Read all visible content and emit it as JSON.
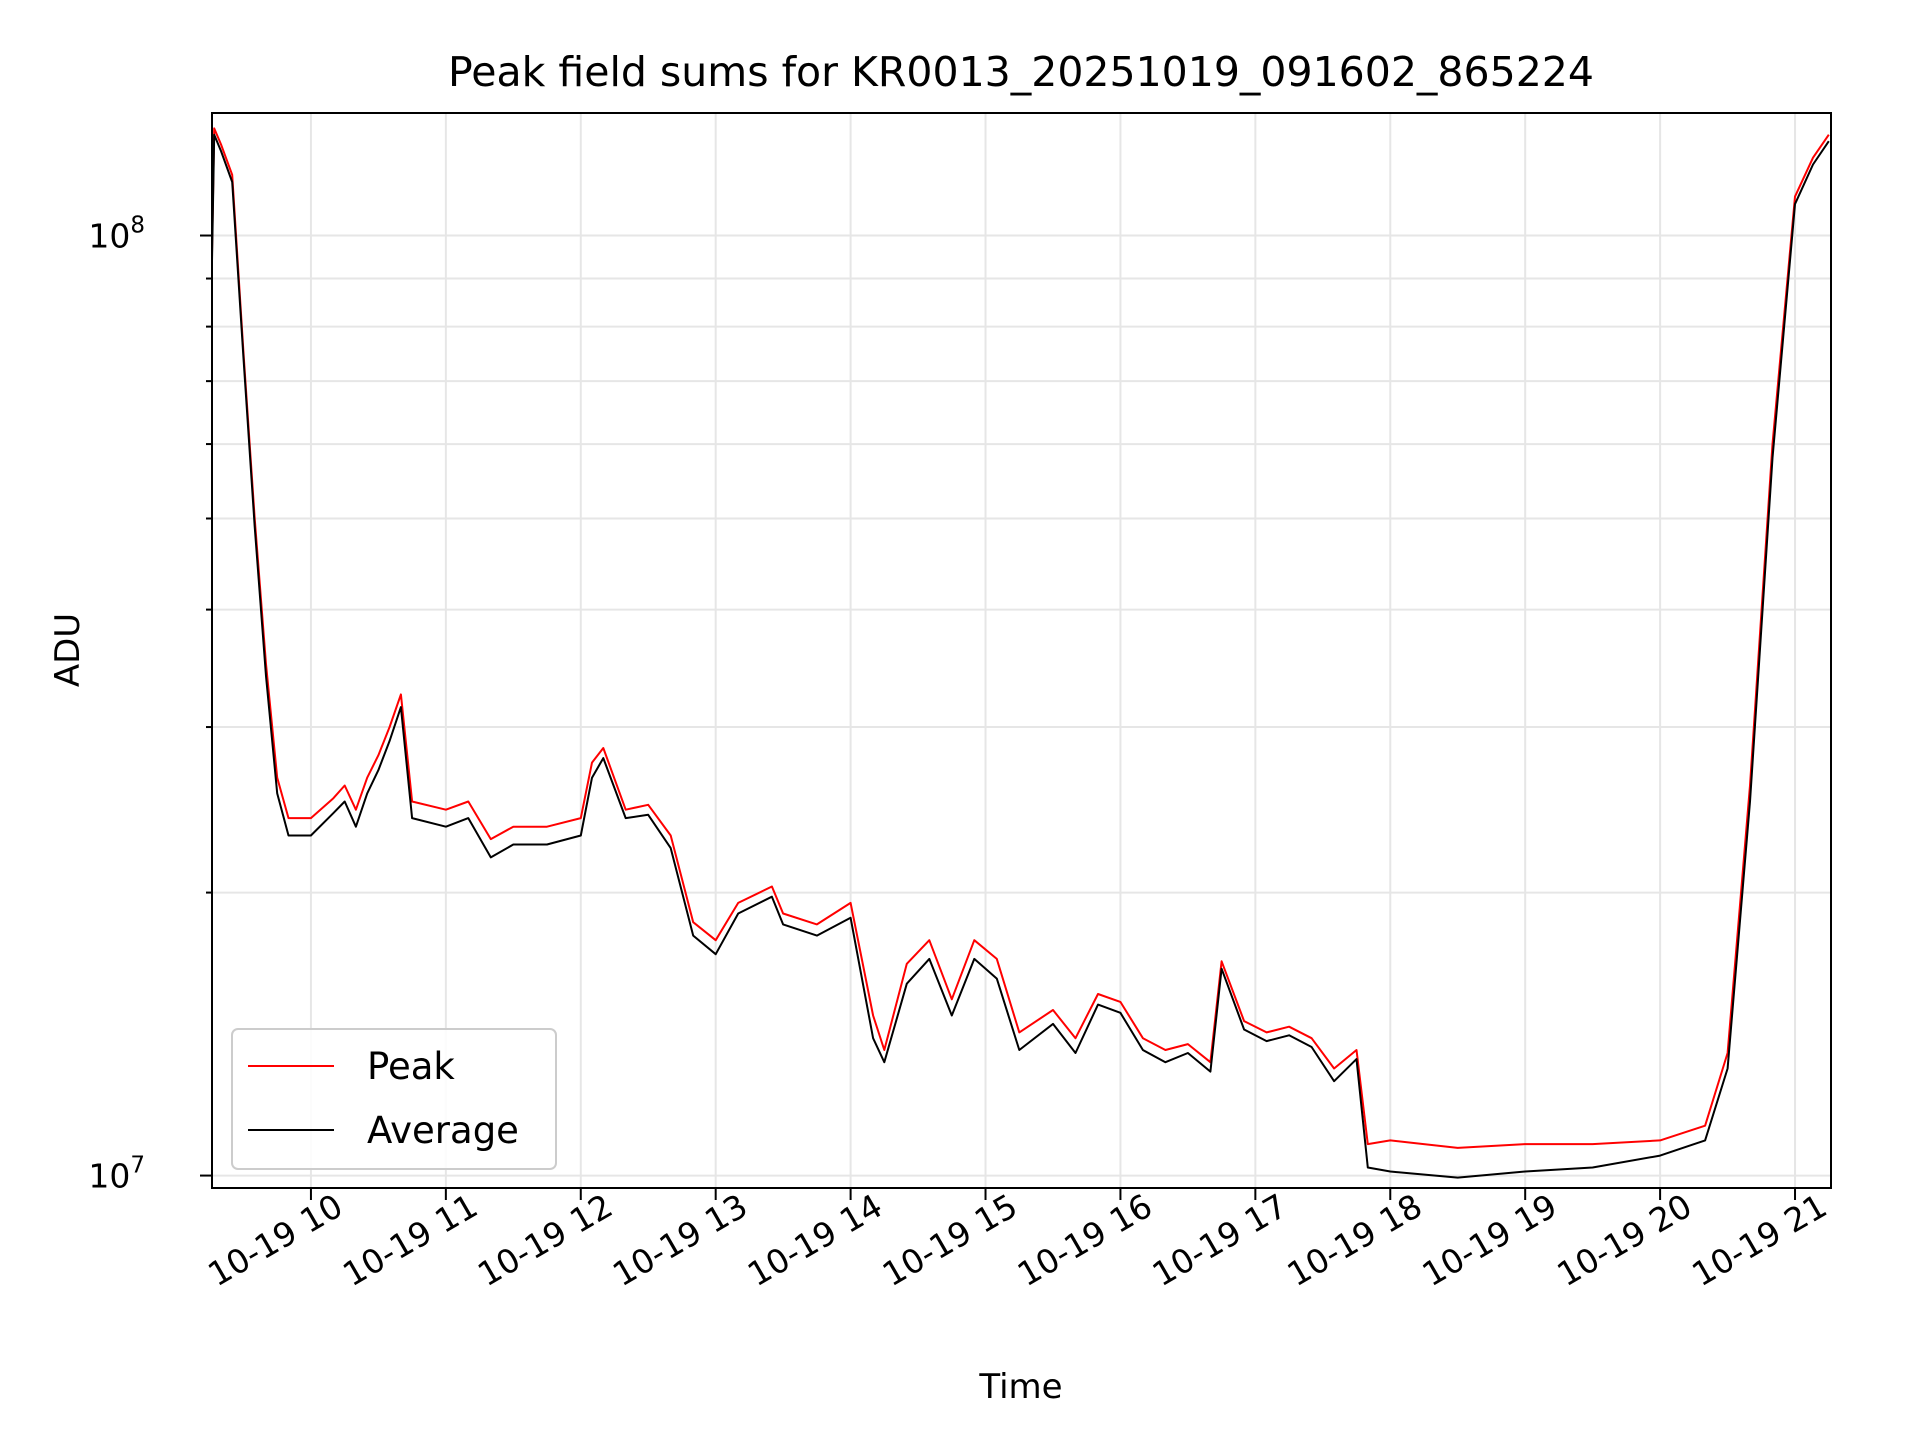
{
  "chart_data": {
    "type": "line",
    "title": "Peak field sums for KR0013_20251019_091602_865224",
    "xlabel": "Time",
    "ylabel": "ADU",
    "y_scale": "log",
    "grid": true,
    "legend_position": "lower-left",
    "xlim": [
      "2025-10-19 09:16",
      "2025-10-19 21:16"
    ],
    "ylim": [
      9700000,
      135000000
    ],
    "x_ticks": [
      {
        "label": "10-19 10",
        "value": "2025-10-19 10:00"
      },
      {
        "label": "10-19 11",
        "value": "2025-10-19 11:00"
      },
      {
        "label": "10-19 12",
        "value": "2025-10-19 12:00"
      },
      {
        "label": "10-19 13",
        "value": "2025-10-19 13:00"
      },
      {
        "label": "10-19 14",
        "value": "2025-10-19 14:00"
      },
      {
        "label": "10-19 15",
        "value": "2025-10-19 15:00"
      },
      {
        "label": "10-19 16",
        "value": "2025-10-19 16:00"
      },
      {
        "label": "10-19 17",
        "value": "2025-10-19 17:00"
      },
      {
        "label": "10-19 18",
        "value": "2025-10-19 18:00"
      },
      {
        "label": "10-19 19",
        "value": "2025-10-19 19:00"
      },
      {
        "label": "10-19 20",
        "value": "2025-10-19 20:00"
      },
      {
        "label": "10-19 21",
        "value": "2025-10-19 21:00"
      }
    ],
    "y_ticks": [
      {
        "base": "10",
        "exp": "7",
        "value": 10000000
      },
      {
        "base": "10",
        "exp": "8",
        "value": 100000000
      }
    ],
    "series": [
      {
        "name": "Peak",
        "color": "#ff0000",
        "points": [
          [
            "2025-10-19 09:16",
            96000000
          ],
          [
            "2025-10-19 09:17",
            130000000
          ],
          [
            "2025-10-19 09:20",
            125000000
          ],
          [
            "2025-10-19 09:25",
            116000000
          ],
          [
            "2025-10-19 09:30",
            75000000
          ],
          [
            "2025-10-19 09:35",
            50000000
          ],
          [
            "2025-10-19 09:40",
            35000000
          ],
          [
            "2025-10-19 09:45",
            26500000
          ],
          [
            "2025-10-19 09:50",
            24000000
          ],
          [
            "2025-10-19 10:00",
            24000000
          ],
          [
            "2025-10-19 10:10",
            25200000
          ],
          [
            "2025-10-19 10:15",
            26000000
          ],
          [
            "2025-10-19 10:20",
            24500000
          ],
          [
            "2025-10-19 10:25",
            26500000
          ],
          [
            "2025-10-19 10:30",
            28000000
          ],
          [
            "2025-10-19 10:35",
            30000000
          ],
          [
            "2025-10-19 10:40",
            32500000
          ],
          [
            "2025-10-19 10:45",
            25000000
          ],
          [
            "2025-10-19 11:00",
            24500000
          ],
          [
            "2025-10-19 11:10",
            25000000
          ],
          [
            "2025-10-19 11:20",
            22800000
          ],
          [
            "2025-10-19 11:30",
            23500000
          ],
          [
            "2025-10-19 11:45",
            23500000
          ],
          [
            "2025-10-19 12:00",
            24000000
          ],
          [
            "2025-10-19 12:05",
            27500000
          ],
          [
            "2025-10-19 12:10",
            28500000
          ],
          [
            "2025-10-19 12:20",
            24500000
          ],
          [
            "2025-10-19 12:30",
            24800000
          ],
          [
            "2025-10-19 12:40",
            23000000
          ],
          [
            "2025-10-19 12:50",
            18600000
          ],
          [
            "2025-10-19 13:00",
            17800000
          ],
          [
            "2025-10-19 13:10",
            19500000
          ],
          [
            "2025-10-19 13:25",
            20300000
          ],
          [
            "2025-10-19 13:30",
            19000000
          ],
          [
            "2025-10-19 13:45",
            18500000
          ],
          [
            "2025-10-19 14:00",
            19500000
          ],
          [
            "2025-10-19 14:10",
            14800000
          ],
          [
            "2025-10-19 14:15",
            13600000
          ],
          [
            "2025-10-19 14:25",
            16800000
          ],
          [
            "2025-10-19 14:35",
            17800000
          ],
          [
            "2025-10-19 14:45",
            15400000
          ],
          [
            "2025-10-19 14:55",
            17800000
          ],
          [
            "2025-10-19 15:05",
            17000000
          ],
          [
            "2025-10-19 15:15",
            14200000
          ],
          [
            "2025-10-19 15:30",
            15000000
          ],
          [
            "2025-10-19 15:40",
            14000000
          ],
          [
            "2025-10-19 15:50",
            15600000
          ],
          [
            "2025-10-19 16:00",
            15300000
          ],
          [
            "2025-10-19 16:10",
            14000000
          ],
          [
            "2025-10-19 16:20",
            13600000
          ],
          [
            "2025-10-19 16:30",
            13800000
          ],
          [
            "2025-10-19 16:40",
            13200000
          ],
          [
            "2025-10-19 16:45",
            16900000
          ],
          [
            "2025-10-19 16:55",
            14600000
          ],
          [
            "2025-10-19 17:05",
            14200000
          ],
          [
            "2025-10-19 17:15",
            14400000
          ],
          [
            "2025-10-19 17:25",
            14000000
          ],
          [
            "2025-10-19 17:35",
            13000000
          ],
          [
            "2025-10-19 17:45",
            13600000
          ],
          [
            "2025-10-19 17:50",
            10800000
          ],
          [
            "2025-10-19 18:00",
            10900000
          ],
          [
            "2025-10-19 18:30",
            10700000
          ],
          [
            "2025-10-19 19:00",
            10800000
          ],
          [
            "2025-10-19 19:30",
            10800000
          ],
          [
            "2025-10-19 20:00",
            10900000
          ],
          [
            "2025-10-19 20:20",
            11300000
          ],
          [
            "2025-10-19 20:30",
            13500000
          ],
          [
            "2025-10-19 20:40",
            26000000
          ],
          [
            "2025-10-19 20:50",
            60000000
          ],
          [
            "2025-10-19 21:00",
            110000000
          ],
          [
            "2025-10-19 21:08",
            121000000
          ],
          [
            "2025-10-19 21:15",
            128000000
          ]
        ]
      },
      {
        "name": "Average",
        "color": "#000000",
        "points": [
          [
            "2025-10-19 09:16",
            94000000
          ],
          [
            "2025-10-19 09:17",
            128000000
          ],
          [
            "2025-10-19 09:20",
            123000000
          ],
          [
            "2025-10-19 09:25",
            114000000
          ],
          [
            "2025-10-19 09:30",
            74000000
          ],
          [
            "2025-10-19 09:35",
            49000000
          ],
          [
            "2025-10-19 09:40",
            34000000
          ],
          [
            "2025-10-19 09:45",
            25500000
          ],
          [
            "2025-10-19 09:50",
            23000000
          ],
          [
            "2025-10-19 10:00",
            23000000
          ],
          [
            "2025-10-19 10:10",
            24300000
          ],
          [
            "2025-10-19 10:15",
            25000000
          ],
          [
            "2025-10-19 10:20",
            23500000
          ],
          [
            "2025-10-19 10:25",
            25500000
          ],
          [
            "2025-10-19 10:30",
            27000000
          ],
          [
            "2025-10-19 10:35",
            29000000
          ],
          [
            "2025-10-19 10:40",
            31500000
          ],
          [
            "2025-10-19 10:45",
            24000000
          ],
          [
            "2025-10-19 11:00",
            23500000
          ],
          [
            "2025-10-19 11:10",
            24000000
          ],
          [
            "2025-10-19 11:20",
            21800000
          ],
          [
            "2025-10-19 11:30",
            22500000
          ],
          [
            "2025-10-19 11:45",
            22500000
          ],
          [
            "2025-10-19 12:00",
            23000000
          ],
          [
            "2025-10-19 12:05",
            26500000
          ],
          [
            "2025-10-19 12:10",
            27800000
          ],
          [
            "2025-10-19 12:20",
            24000000
          ],
          [
            "2025-10-19 12:30",
            24200000
          ],
          [
            "2025-10-19 12:40",
            22300000
          ],
          [
            "2025-10-19 12:50",
            18000000
          ],
          [
            "2025-10-19 13:00",
            17200000
          ],
          [
            "2025-10-19 13:10",
            19000000
          ],
          [
            "2025-10-19 13:25",
            19800000
          ],
          [
            "2025-10-19 13:30",
            18500000
          ],
          [
            "2025-10-19 13:45",
            18000000
          ],
          [
            "2025-10-19 14:00",
            18800000
          ],
          [
            "2025-10-19 14:10",
            14000000
          ],
          [
            "2025-10-19 14:15",
            13200000
          ],
          [
            "2025-10-19 14:25",
            16000000
          ],
          [
            "2025-10-19 14:35",
            17000000
          ],
          [
            "2025-10-19 14:45",
            14800000
          ],
          [
            "2025-10-19 14:55",
            17000000
          ],
          [
            "2025-10-19 15:05",
            16200000
          ],
          [
            "2025-10-19 15:15",
            13600000
          ],
          [
            "2025-10-19 15:30",
            14500000
          ],
          [
            "2025-10-19 15:40",
            13500000
          ],
          [
            "2025-10-19 15:50",
            15200000
          ],
          [
            "2025-10-19 16:00",
            14900000
          ],
          [
            "2025-10-19 16:10",
            13600000
          ],
          [
            "2025-10-19 16:20",
            13200000
          ],
          [
            "2025-10-19 16:30",
            13500000
          ],
          [
            "2025-10-19 16:40",
            12900000
          ],
          [
            "2025-10-19 16:45",
            16600000
          ],
          [
            "2025-10-19 16:55",
            14300000
          ],
          [
            "2025-10-19 17:05",
            13900000
          ],
          [
            "2025-10-19 17:15",
            14100000
          ],
          [
            "2025-10-19 17:25",
            13700000
          ],
          [
            "2025-10-19 17:35",
            12600000
          ],
          [
            "2025-10-19 17:45",
            13300000
          ],
          [
            "2025-10-19 17:50",
            10200000
          ],
          [
            "2025-10-19 18:00",
            10100000
          ],
          [
            "2025-10-19 18:30",
            9950000
          ],
          [
            "2025-10-19 19:00",
            10100000
          ],
          [
            "2025-10-19 19:30",
            10200000
          ],
          [
            "2025-10-19 20:00",
            10500000
          ],
          [
            "2025-10-19 20:20",
            10900000
          ],
          [
            "2025-10-19 20:30",
            13000000
          ],
          [
            "2025-10-19 20:40",
            25000000
          ],
          [
            "2025-10-19 20:50",
            58000000
          ],
          [
            "2025-10-19 21:00",
            108000000
          ],
          [
            "2025-10-19 21:08",
            119000000
          ],
          [
            "2025-10-19 21:15",
            126000000
          ]
        ]
      }
    ]
  }
}
